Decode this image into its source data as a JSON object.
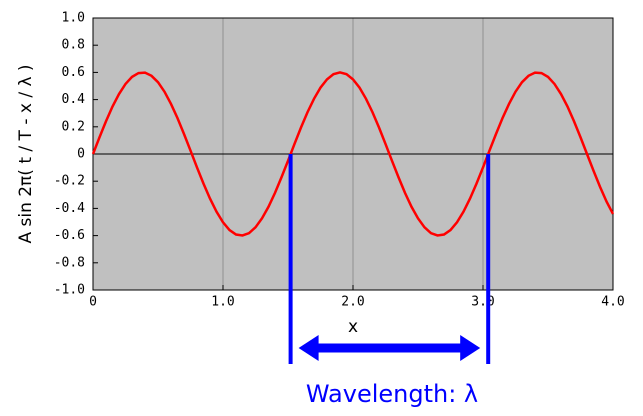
{
  "chart_data": {
    "type": "line",
    "ylabel": "A sin 2π( t / T - x / λ )",
    "xlabel": "x",
    "x": [
      0,
      0.05,
      0.1,
      0.15,
      0.2,
      0.25,
      0.3,
      0.35,
      0.4,
      0.45,
      0.5,
      0.55,
      0.6,
      0.65,
      0.7,
      0.75,
      0.8,
      0.85,
      0.9,
      0.95,
      1,
      1.05,
      1.1,
      1.15,
      1.2,
      1.25,
      1.3,
      1.35,
      1.4,
      1.45,
      1.5,
      1.55,
      1.6,
      1.65,
      1.7,
      1.75,
      1.8,
      1.85,
      1.9,
      1.95,
      2,
      2.05,
      2.1,
      2.15,
      2.2,
      2.25,
      2.3,
      2.35,
      2.4,
      2.45,
      2.5,
      2.55,
      2.6,
      2.65,
      2.7,
      2.75,
      2.8,
      2.85,
      2.9,
      2.95,
      3,
      3.05,
      3.1,
      3.15,
      3.2,
      3.25,
      3.3,
      3.35,
      3.4,
      3.45,
      3.5,
      3.55,
      3.6,
      3.65,
      3.7,
      3.75,
      3.8,
      3.85,
      3.9,
      3.95,
      4
    ],
    "series": [
      {
        "color": "#ff0000",
        "values": [
          0,
          0.123,
          0.241,
          0.349,
          0.441,
          0.515,
          0.567,
          0.595,
          0.598,
          0.575,
          0.528,
          0.458,
          0.368,
          0.264,
          0.147,
          0.025,
          -0.099,
          -0.218,
          -0.328,
          -0.424,
          -0.502,
          -0.559,
          -0.592,
          -0.599,
          -0.582,
          -0.539,
          -0.473,
          -0.388,
          -0.286,
          -0.171,
          -0.05,
          0.074,
          0.195,
          0.307,
          0.406,
          0.488,
          0.549,
          0.587,
          0.6,
          0.587,
          0.549,
          0.488,
          0.406,
          0.307,
          0.195,
          0.074,
          -0.05,
          -0.171,
          -0.286,
          -0.388,
          -0.473,
          -0.539,
          -0.582,
          -0.599,
          -0.592,
          -0.559,
          -0.502,
          -0.424,
          -0.328,
          -0.218,
          -0.099,
          0.025,
          0.147,
          0.264,
          0.368,
          0.458,
          0.528,
          0.575,
          0.598,
          0.595,
          0.567,
          0.515,
          0.441,
          0.349,
          0.241,
          0.123,
          0,
          -0.123,
          -0.241,
          -0.349,
          -0.441
        ]
      }
    ],
    "xlim": [
      0,
      4
    ],
    "ylim": [
      -1,
      1
    ],
    "xticks": [
      0,
      {
        "value": 1,
        "label": "1.0"
      },
      {
        "value": 2,
        "label": "2.0"
      },
      {
        "value": 3,
        "label": "3.0"
      },
      {
        "value": 4,
        "label": "4.0"
      }
    ],
    "yticks": [
      {
        "value": 1,
        "label": "1.0"
      },
      {
        "value": 0.8,
        "label": "0.8"
      },
      {
        "value": 0.6,
        "label": "0.6"
      },
      {
        "value": 0.4,
        "label": "0.4"
      },
      {
        "value": 0.2,
        "label": "0.2"
      },
      0,
      {
        "value": -0.2,
        "label": "-0.2"
      },
      {
        "value": -0.4,
        "label": "-0.4"
      },
      {
        "value": -0.6,
        "label": "-0.6"
      },
      {
        "value": -0.8,
        "label": "-0.8"
      },
      {
        "value": -1,
        "label": "-1.0"
      }
    ],
    "grid": true,
    "annotation": {
      "text": "Wavelength: λ",
      "x": [
        1.52,
        3.04
      ],
      "color": "#0000ff"
    }
  }
}
